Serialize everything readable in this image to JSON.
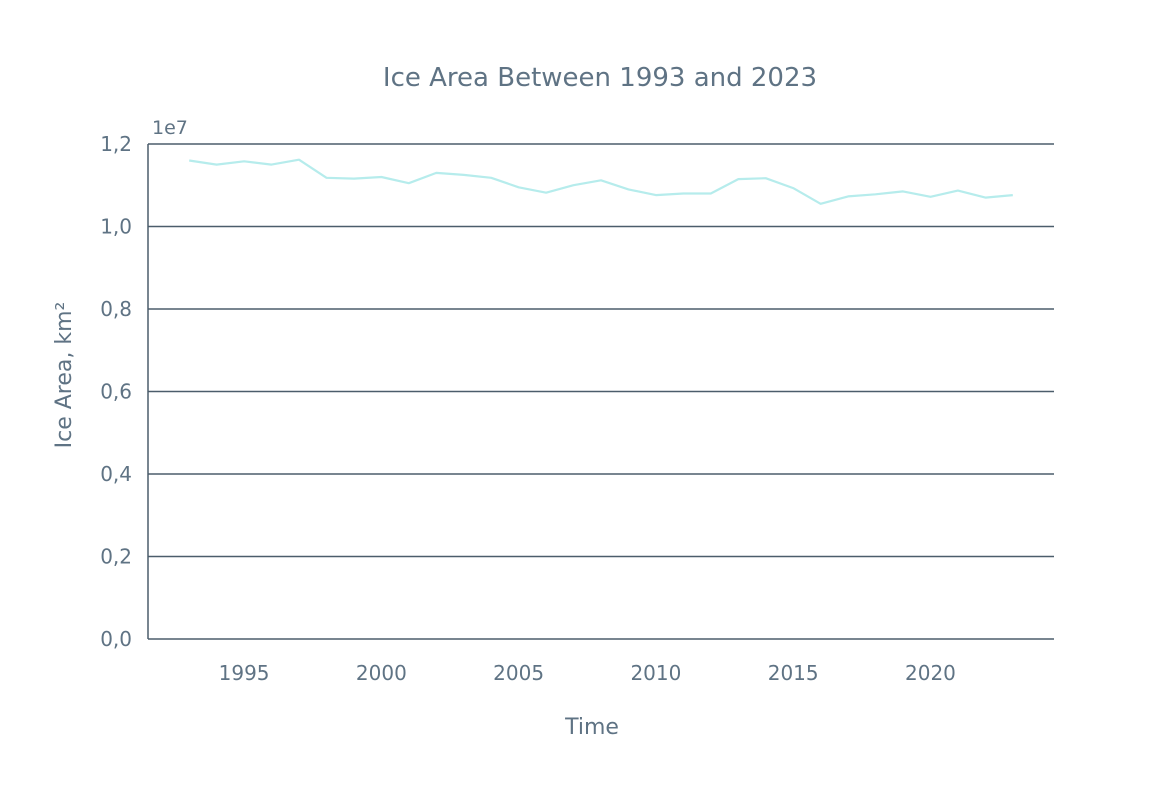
{
  "chart_data": {
    "type": "line",
    "title": "Ice Area Between 1993 and 2023",
    "xlabel": "Time",
    "ylabel": "Ice Area, km²",
    "y_offset_label": "1e7",
    "xlim": [
      1991.5,
      2024.5
    ],
    "ylim": [
      0.0,
      1.2
    ],
    "grid": "horizontal",
    "x_ticks": [
      1995,
      2000,
      2005,
      2010,
      2015,
      2020
    ],
    "x_tick_labels": [
      "1995",
      "2000",
      "2005",
      "2010",
      "2015",
      "2020"
    ],
    "y_ticks": [
      0.0,
      0.2,
      0.4,
      0.6,
      0.8,
      1.0,
      1.2
    ],
    "y_tick_labels": [
      "0,0",
      "0,2",
      "0,4",
      "0,6",
      "0,8",
      "1,0",
      "1,2"
    ],
    "colors": {
      "line": "#b6ecec",
      "grid": "#4b5d6b",
      "text": "#5f7384"
    },
    "series": [
      {
        "x": [
          1993,
          1994,
          1995,
          1996,
          1997,
          1998,
          1999,
          2000,
          2001,
          2002,
          2003,
          2004,
          2005,
          2006,
          2007,
          2008,
          2009,
          2010,
          2011,
          2012,
          2013,
          2014,
          2015,
          2016,
          2017,
          2018,
          2019,
          2020,
          2021,
          2022,
          2023
        ],
        "values": [
          1.16,
          1.15,
          1.158,
          1.15,
          1.162,
          1.118,
          1.116,
          1.12,
          1.105,
          1.13,
          1.125,
          1.118,
          1.095,
          1.082,
          1.1,
          1.112,
          1.09,
          1.076,
          1.08,
          1.08,
          1.115,
          1.117,
          1.093,
          1.055,
          1.073,
          1.078,
          1.085,
          1.072,
          1.087,
          1.07,
          1.076
        ]
      }
    ]
  }
}
